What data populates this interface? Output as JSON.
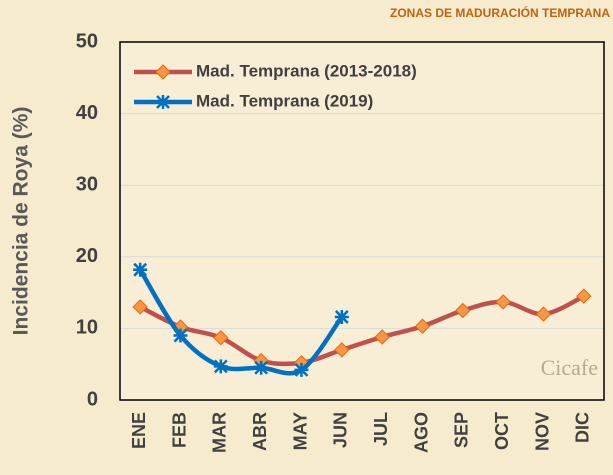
{
  "chart_data": {
    "type": "line",
    "title": "ZONAS DE MADURACIÓN TEMPRANA",
    "y_label": "Incidencia de Roya (%)",
    "categories": [
      "ENE",
      "FEB",
      "MAR",
      "ABR",
      "MAY",
      "JUN",
      "JUL",
      "AGO",
      "SEP",
      "OCT",
      "NOV",
      "DIC"
    ],
    "series": [
      {
        "name": "Mad. Temprana (2013-2018)",
        "color": "#c0504d",
        "marker": "diamond",
        "marker_color": "#f79646",
        "values": [
          13,
          10.2,
          8.7,
          5.5,
          5.2,
          7,
          8.8,
          10.3,
          12.5,
          13.7,
          12,
          14.5
        ]
      },
      {
        "name": "Mad. Temprana (2019)",
        "color": "#0070c0",
        "marker": "asterisk",
        "marker_color": "#0070c0",
        "values": [
          18.2,
          9,
          4.7,
          4.5,
          4.2,
          11.6,
          null,
          null,
          null,
          null,
          null,
          null
        ]
      }
    ],
    "ylim": [
      0,
      50
    ],
    "yticks": [
      0,
      10,
      20,
      30,
      40,
      50
    ],
    "grid": true,
    "smooth": true,
    "legend": "top-left",
    "watermark": "Cicafe"
  }
}
